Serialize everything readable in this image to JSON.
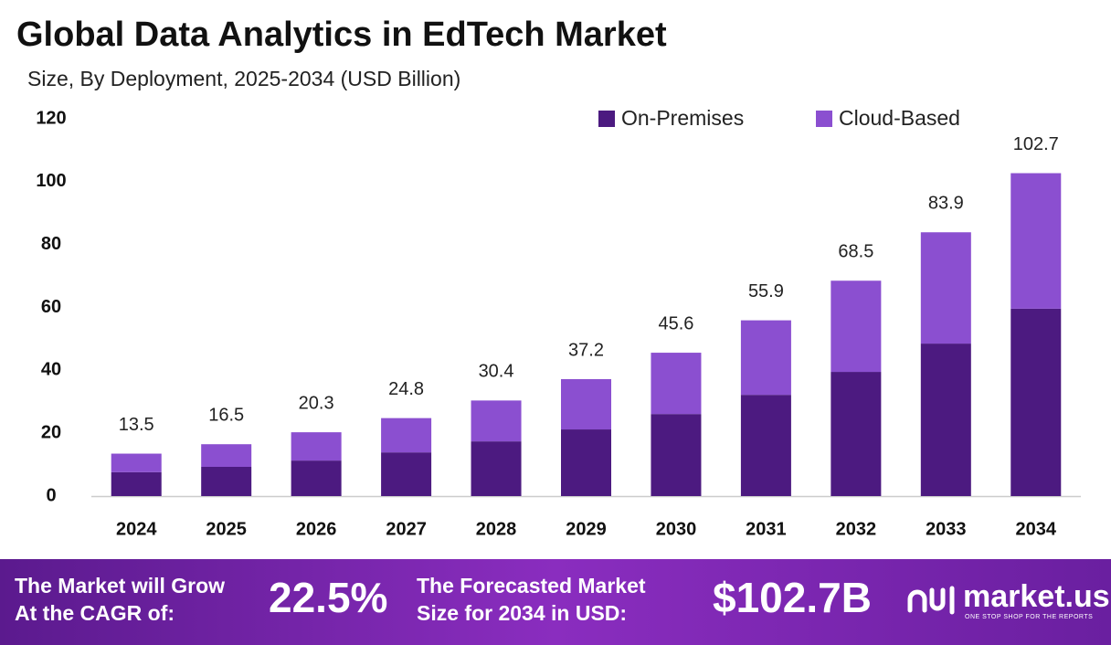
{
  "chart_data": {
    "type": "stacked_bar",
    "title": "Global Data Analytics in EdTech Market",
    "subtitle": "Size, By Deployment, 2025-2034 (USD Billion)",
    "categories": [
      "2024",
      "2025",
      "2026",
      "2027",
      "2028",
      "2029",
      "2030",
      "2031",
      "2032",
      "2033",
      "2034"
    ],
    "series": [
      {
        "name": "On-Premises",
        "color": "#4c1a80",
        "values": [
          7.6,
          9.3,
          11.3,
          13.9,
          17.4,
          21.2,
          26.1,
          32.2,
          39.5,
          48.5,
          59.6
        ]
      },
      {
        "name": "Cloud-Based",
        "color": "#8b4fd0",
        "values": [
          5.9,
          7.2,
          9.0,
          10.9,
          13.0,
          16.0,
          19.5,
          23.7,
          29.0,
          35.4,
          43.1
        ]
      }
    ],
    "totals": [
      13.5,
      16.5,
      20.3,
      24.8,
      30.4,
      37.2,
      45.6,
      55.9,
      68.5,
      83.9,
      102.7
    ],
    "ylim": [
      0,
      120
    ],
    "yticks": [
      0,
      20,
      40,
      60,
      80,
      100,
      120
    ],
    "grid": false,
    "legend": "top-right"
  },
  "footer": {
    "cagr_label": [
      "The Market will Grow",
      "At the CAGR of:"
    ],
    "cagr_value": "22.5%",
    "forecast_label": [
      "The Forecasted Market",
      "Size for 2034 in USD:"
    ],
    "forecast_value": "$102.7B",
    "brand": "market.us",
    "tagline": "ONE STOP SHOP FOR THE REPORTS"
  }
}
